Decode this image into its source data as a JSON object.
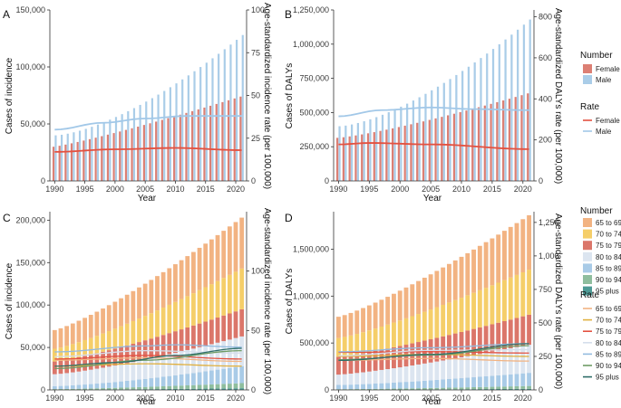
{
  "chart_data": [
    {
      "panel": "A",
      "type": "bar+line",
      "xlabel": "Year",
      "ylabel_left": "Cases of incidence",
      "ylabel_right": "Age-standardized incidence rate (per 100,000)",
      "x_ticks": [
        "1990",
        "1995",
        "2000",
        "2005",
        "2010",
        "2015",
        "2020"
      ],
      "y_left_ticks": [
        "0",
        "50,000",
        "100,000",
        "150,000"
      ],
      "y_right_ticks": [
        "0",
        "25",
        "50",
        "75",
        "100"
      ],
      "ylim_left": [
        0,
        150000
      ],
      "ylim_right": [
        0,
        100
      ],
      "bar_mode": "dodge",
      "bar_series": [
        {
          "name": "Female",
          "start": 30000,
          "end": 74000,
          "curve": 1.15
        },
        {
          "name": "Male",
          "start": 40000,
          "end": 128000,
          "curve": 1.5
        }
      ],
      "line_series": [
        {
          "name": "Female",
          "points": [
            [
              1990,
              17
            ],
            [
              2000,
              18.5
            ],
            [
              2010,
              19.3
            ],
            [
              2021,
              18
            ]
          ]
        },
        {
          "name": "Male",
          "points": [
            [
              1990,
              30
            ],
            [
              1998,
              34
            ],
            [
              2005,
              36.5
            ],
            [
              2012,
              38
            ],
            [
              2021,
              38
            ]
          ]
        }
      ]
    },
    {
      "panel": "B",
      "type": "bar+line",
      "xlabel": "Year",
      "ylabel_left": "Cases of DALYs",
      "ylabel_right": "Age-standardized DALYs rate (per 100,000)",
      "x_ticks": [
        "1990",
        "1995",
        "2000",
        "2005",
        "2010",
        "2015",
        "2020"
      ],
      "y_left_ticks": [
        "0",
        "250,000",
        "500,000",
        "750,000",
        "1,000,000",
        "1,250,000"
      ],
      "y_right_ticks": [
        "0",
        "200",
        "400",
        "600",
        "800"
      ],
      "ylim_left": [
        0,
        1250000
      ],
      "ylim_right": [
        0,
        833.3
      ],
      "bar_mode": "dodge",
      "bar_series": [
        {
          "name": "Female",
          "start": 315000,
          "end": 640000,
          "curve": 1.25
        },
        {
          "name": "Male",
          "start": 400000,
          "end": 1180000,
          "curve": 1.5
        }
      ],
      "line_series": [
        {
          "name": "Female",
          "points": [
            [
              1990,
              178
            ],
            [
              1995,
              185
            ],
            [
              2005,
              178
            ],
            [
              2021,
              155
            ]
          ]
        },
        {
          "name": "Male",
          "points": [
            [
              1990,
              315
            ],
            [
              1997,
              345
            ],
            [
              2005,
              358
            ],
            [
              2012,
              350
            ],
            [
              2021,
              345
            ]
          ]
        }
      ],
      "legend": {
        "bars_title": "Number",
        "lines_title": "Rate",
        "entries": [
          "Female",
          "Male"
        ]
      }
    },
    {
      "panel": "C",
      "type": "bar+line",
      "xlabel": "Year",
      "ylabel_left": "Cases of incidence",
      "ylabel_right": "Age-standardized incidence rate (per 100,000)",
      "x_ticks": [
        "1990",
        "1995",
        "2000",
        "2005",
        "2010",
        "2015",
        "2020"
      ],
      "y_left_ticks": [
        "0",
        "50,000",
        "100,000",
        "150,000",
        "200,000"
      ],
      "y_right_ticks": [
        "0",
        "50",
        "100"
      ],
      "ylim_left": [
        0,
        210000
      ],
      "ylim_right": [
        0,
        150
      ],
      "bar_mode": "stack",
      "bar_series": [
        {
          "name": "95 plus",
          "start": 200,
          "end": 2000,
          "curve": 1.4
        },
        {
          "name": "90 to 94",
          "start": 800,
          "end": 6000,
          "curve": 1.4
        },
        {
          "name": "85 to 89",
          "start": 3500,
          "end": 20000,
          "curve": 1.4
        },
        {
          "name": "80 to 84",
          "start": 14000,
          "end": 35000,
          "curve": 1.2
        },
        {
          "name": "75 to 79",
          "start": 15000,
          "end": 32000,
          "curve": 1.1
        },
        {
          "name": "70 to 74",
          "start": 15000,
          "end": 48000,
          "curve": 1.2
        },
        {
          "name": "65 to 69",
          "start": 22000,
          "end": 60000,
          "curve": 1.2
        }
      ],
      "line_series": [
        {
          "name": "65 to 69",
          "points": [
            [
              1990,
              25
            ],
            [
              2005,
              27
            ],
            [
              2021,
              24
            ]
          ]
        },
        {
          "name": "70 to 74",
          "points": [
            [
              1990,
              20
            ],
            [
              2005,
              22
            ],
            [
              2021,
              20
            ]
          ]
        },
        {
          "name": "75 to 79",
          "points": [
            [
              1990,
              26
            ],
            [
              2005,
              29
            ],
            [
              2021,
              26
            ]
          ]
        },
        {
          "name": "80 to 84",
          "points": [
            [
              1990,
              28
            ],
            [
              2005,
              33
            ],
            [
              2021,
              31
            ]
          ]
        },
        {
          "name": "85 to 89",
          "points": [
            [
              1990,
              32
            ],
            [
              2005,
              37
            ],
            [
              2010,
              38
            ],
            [
              2021,
              36
            ]
          ]
        },
        {
          "name": "90 to 94",
          "points": [
            [
              1990,
              18
            ],
            [
              2005,
              25
            ],
            [
              2021,
              33
            ]
          ]
        },
        {
          "name": "95 plus",
          "points": [
            [
              1990,
              20
            ],
            [
              2000,
              23
            ],
            [
              2010,
              29
            ],
            [
              2021,
              35
            ]
          ]
        }
      ]
    },
    {
      "panel": "D",
      "type": "bar+line",
      "xlabel": "Year",
      "ylabel_left": "Cases of DALYs",
      "ylabel_right": "Age-standardized DALYs rate (per 100,000)",
      "x_ticks": [
        "1990",
        "1995",
        "2000",
        "2005",
        "2010",
        "2015",
        "2020"
      ],
      "y_left_ticks": [
        "0",
        "500,000",
        "1,000,000",
        "1,500,000"
      ],
      "y_right_ticks": [
        "0",
        "250",
        "500",
        "750",
        "1,000",
        "1,250"
      ],
      "ylim_left": [
        0,
        1900000
      ],
      "ylim_right": [
        0,
        1330
      ],
      "bar_mode": "stack",
      "bar_series": [
        {
          "name": "95 plus",
          "start": 2000,
          "end": 12000,
          "curve": 1.4
        },
        {
          "name": "90 to 94",
          "start": 6000,
          "end": 30000,
          "curve": 1.4
        },
        {
          "name": "85 to 89",
          "start": 45000,
          "end": 140000,
          "curve": 1.3
        },
        {
          "name": "80 to 84",
          "start": 110000,
          "end": 300000,
          "curve": 1.2
        },
        {
          "name": "75 to 79",
          "start": 190000,
          "end": 320000,
          "curve": 1.1
        },
        {
          "name": "70 to 74",
          "start": 200000,
          "end": 480000,
          "curve": 1.2
        },
        {
          "name": "65 to 69",
          "start": 227000,
          "end": 580000,
          "curve": 1.2
        }
      ],
      "line_series": [
        {
          "name": "65 to 69",
          "points": [
            [
              1990,
              220
            ],
            [
              2005,
              235
            ],
            [
              2021,
              215
            ]
          ]
        },
        {
          "name": "70 to 74",
          "points": [
            [
              1990,
              250
            ],
            [
              2005,
              265
            ],
            [
              2021,
              250
            ]
          ]
        },
        {
          "name": "75 to 79",
          "points": [
            [
              1990,
              280
            ],
            [
              2005,
              285
            ],
            [
              2021,
              275
            ]
          ]
        },
        {
          "name": "80 to 84",
          "points": [
            [
              1990,
              255
            ],
            [
              2005,
              295
            ],
            [
              2021,
              300
            ]
          ]
        },
        {
          "name": "85 to 89",
          "points": [
            [
              1990,
              285
            ],
            [
              2005,
              315
            ],
            [
              2021,
              345
            ]
          ]
        },
        {
          "name": "90 to 94",
          "points": [
            [
              1990,
              225
            ],
            [
              2005,
              260
            ],
            [
              2021,
              330
            ]
          ]
        },
        {
          "name": "95 plus",
          "points": [
            [
              1990,
              220
            ],
            [
              2005,
              265
            ],
            [
              2021,
              345
            ]
          ]
        }
      ],
      "legend": {
        "bars_title": "Number",
        "lines_title": "Rate",
        "entries": [
          "65 to 69",
          "70 to 74",
          "75 to 79",
          "80 to 84",
          "85 to 89",
          "90 to 94",
          "95 plus"
        ]
      }
    }
  ],
  "colors": {
    "female_bar": "#DC7F74",
    "male_bar": "#AACDE8",
    "female_line": "#E35140",
    "male_line": "#A2C8E8",
    "age_bars": {
      "65 to 69": "#F2B382",
      "70 to 74": "#F5CE69",
      "75 to 79": "#DB766A",
      "80 to 84": "#DCE5F0",
      "85 to 89": "#A9CBE7",
      "90 to 94": "#8FBE9E",
      "95 plus": "#4E9A95"
    },
    "age_lines": {
      "65 to 69": "#F2B382",
      "70 to 74": "#E0B040",
      "75 to 79": "#E35140",
      "80 to 84": "#D5DEEB",
      "85 to 89": "#93BBDF",
      "90 to 94": "#6E9C65",
      "95 plus": "#2E6E69"
    }
  }
}
